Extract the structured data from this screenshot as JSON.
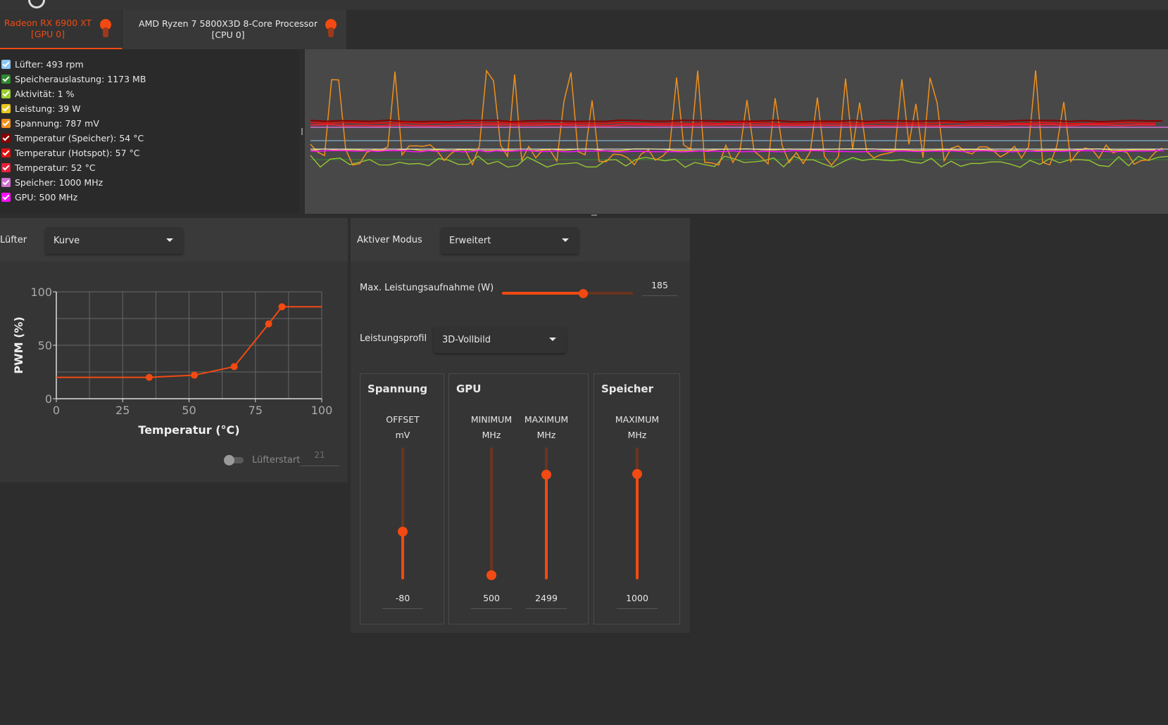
{
  "colors": {
    "accent": "#f24a12",
    "accent_dark": "#6b3420",
    "background": "#2d2d2d",
    "panel": "#353535",
    "graph_bg": "#484848"
  },
  "tabs": [
    {
      "label_line1": "Radeon RX 6900 XT",
      "label_line2": "[GPU 0]",
      "active": true,
      "icon": "pin-icon"
    },
    {
      "label_line1": "AMD Ryzen 7 5800X3D 8-Core Processor",
      "label_line2": "[CPU 0]",
      "active": false,
      "icon": "pin-icon"
    }
  ],
  "legend": [
    {
      "label": "Lüfter: 493 rpm",
      "color": "#8ac7f5",
      "checked": true
    },
    {
      "label": "Speicherauslastung: 1173 MB",
      "color": "#2e8b2e",
      "checked": true
    },
    {
      "label": "Aktivität: 1 %",
      "color": "#9acd32",
      "checked": true
    },
    {
      "label": "Leistung: 39 W",
      "color": "#e8c820",
      "checked": true
    },
    {
      "label": "Spannung: 787 mV",
      "color": "#f0901c",
      "checked": true
    },
    {
      "label": "Temperatur (Speicher): 54 °C",
      "color": "#8b0000",
      "checked": true
    },
    {
      "label": "Temperatur (Hotspot): 57 °C",
      "color": "#e01010",
      "checked": true
    },
    {
      "label": "Temperatur: 52 °C",
      "color": "#e8203a",
      "checked": true
    },
    {
      "label": "Speicher: 1000 MHz",
      "color": "#d070d0",
      "checked": true
    },
    {
      "label": "GPU: 500 MHz",
      "color": "#ff10ff",
      "checked": true
    }
  ],
  "fan": {
    "mode_label": "Lüfter",
    "mode_value": "Kurve",
    "fanstart_label": "Lüfterstart",
    "fanstart_value": "21",
    "fanstart_enabled": false
  },
  "chart_data": {
    "type": "line",
    "title": "",
    "xlabel": "Temperatur (°C)",
    "ylabel": "PWM (%)",
    "xlim": [
      0,
      100
    ],
    "ylim": [
      0,
      100
    ],
    "xticks": [
      "0",
      "25",
      "50",
      "75",
      "100"
    ],
    "yticks": [
      "0",
      "50",
      "100"
    ],
    "grid": true,
    "points": [
      {
        "x": 35,
        "y": 20
      },
      {
        "x": 52,
        "y": 22
      },
      {
        "x": 67,
        "y": 30
      },
      {
        "x": 80,
        "y": 70
      },
      {
        "x": 85,
        "y": 86
      }
    ],
    "line_start": {
      "x": 0,
      "y": 20
    },
    "line_end": {
      "x": 100,
      "y": 86
    }
  },
  "performance": {
    "mode_label": "Aktiver Modus",
    "mode_value": "Erweitert",
    "power_label": "Max. Leistungsaufnahme (W)",
    "power_value": "185",
    "power_fraction": 0.62,
    "profile_label": "Leistungsprofil",
    "profile_value": "3D-Vollbild",
    "groups": {
      "voltage": {
        "title": "Spannung",
        "cols": [
          {
            "cap1": "OFFSET",
            "cap2": "mV",
            "value": "-80",
            "fraction": 0.36
          }
        ]
      },
      "gpu": {
        "title": "GPU",
        "cols": [
          {
            "cap1": "MINIMUM",
            "cap2": "MHz",
            "value": "500",
            "fraction": 0.03
          },
          {
            "cap1": "MAXIMUM",
            "cap2": "MHz",
            "value": "2499",
            "fraction": 0.79
          }
        ]
      },
      "memory": {
        "title": "Speicher",
        "cols": [
          {
            "cap1": "MAXIMUM",
            "cap2": "MHz",
            "value": "1000",
            "fraction": 0.8
          }
        ]
      }
    }
  }
}
